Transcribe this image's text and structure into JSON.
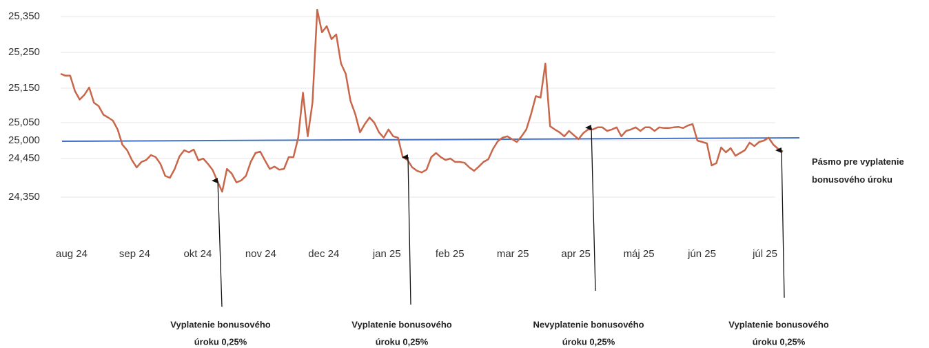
{
  "chart_data": {
    "type": "line",
    "x_tick_labels": [
      "aug 24",
      "sep 24",
      "okt 24",
      "nov 24",
      "dec 24",
      "jan 25",
      "feb 25",
      "mar 25",
      "apr 25",
      "máj 25",
      "jún 25",
      "júl 25"
    ],
    "series": [
      {
        "color": "#c8664a",
        "values": [
          25.19,
          25.185,
          25.185,
          25.142,
          25.117,
          25.131,
          25.152,
          25.108,
          25.098,
          25.073,
          25.065,
          25.056,
          25.031,
          24.873,
          24.704,
          24.446,
          24.427,
          24.441,
          24.446,
          24.556,
          24.492,
          24.436,
          24.405,
          24.4,
          24.423,
          24.514,
          24.704,
          24.64,
          24.725,
          24.445,
          24.45,
          24.436,
          24.42,
          24.391,
          24.364,
          24.423,
          24.411,
          24.388,
          24.393,
          24.405,
          24.441,
          24.619,
          24.662,
          24.445,
          24.423,
          24.429,
          24.421,
          24.423,
          24.492,
          24.492,
          25.008,
          25.137,
          25.012,
          25.108,
          25.369,
          25.306,
          25.323,
          25.287,
          25.3,
          25.219,
          25.19,
          25.113,
          25.075,
          25.023,
          25.046,
          25.065,
          25.05,
          25.023,
          25.008,
          25.031,
          25.012,
          25.008,
          24.492,
          24.446,
          24.427,
          24.418,
          24.414,
          24.421,
          24.492,
          24.619,
          24.492,
          24.446,
          24.45,
          24.441,
          24.441,
          24.439,
          24.427,
          24.418,
          24.429,
          24.441,
          24.448,
          24.746,
          24.979,
          25.008,
          25.012,
          25.004,
          24.958,
          25.012,
          25.031,
          25.075,
          25.127,
          25.123,
          25.219,
          25.04,
          25.031,
          25.023,
          25.012,
          25.027,
          25.015,
          25.004,
          25.021,
          25.031,
          25.031,
          25.037,
          25.037,
          25.027,
          25.031,
          25.037,
          25.012,
          25.027,
          25.031,
          25.037,
          25.027,
          25.037,
          25.037,
          25.027,
          25.037,
          25.035,
          25.035,
          25.037,
          25.038,
          25.035,
          25.042,
          25.046,
          25.0,
          24.958,
          24.915,
          24.432,
          24.438,
          24.788,
          24.64,
          24.767,
          24.535,
          24.619,
          24.704,
          24.937,
          24.831,
          24.958,
          25.0,
          25.008,
          24.873,
          24.746,
          24.662
        ]
      }
    ],
    "ylim": [
      24.3,
      25.38
    ],
    "yticks": [
      {
        "value": 25.35,
        "label": "25,350"
      },
      {
        "value": 25.25,
        "label": "25,250"
      },
      {
        "value": 25.15,
        "label": "25,150"
      },
      {
        "value": 25.05,
        "label": "25,050"
      },
      {
        "value": 25.0,
        "label": "25,000",
        "color": "#ff0000"
      },
      {
        "value": 24.45,
        "label": "24,450"
      },
      {
        "value": 24.35,
        "label": "24,350"
      }
    ],
    "grid": true,
    "reference_line": {
      "value": 25.0,
      "color": "#4472c4",
      "label": "Pásmo pre vyplatenie bonusového úroku"
    },
    "annotations": [
      {
        "line1": "Vyplatenie bonusového",
        "line2": "úroku 0,25%"
      },
      {
        "line1": "Vyplatenie bonusového",
        "line2": "úroku 0,25%"
      },
      {
        "line1": "Nevyplatenie bonusového",
        "line2": "úroku 0,25%"
      },
      {
        "line1": "Vyplatenie bonusového",
        "line2": "úroku 0,25%"
      }
    ]
  }
}
